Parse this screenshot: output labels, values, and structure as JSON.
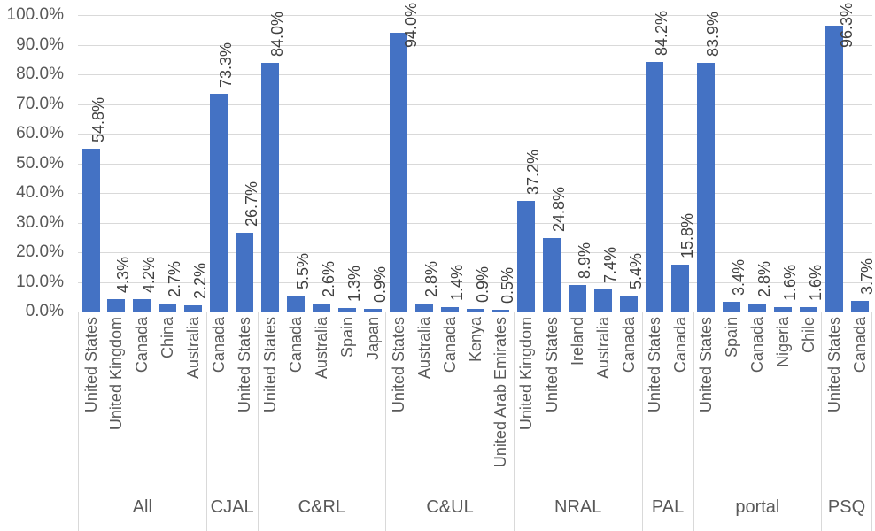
{
  "chart_data": {
    "type": "bar",
    "title": "",
    "xlabel": "",
    "ylabel": "",
    "ylim": [
      0,
      100
    ],
    "grid": true,
    "legend": false,
    "y_tick_labels": [
      "0.0%",
      "10.0%",
      "20.0%",
      "30.0%",
      "40.0%",
      "50.0%",
      "60.0%",
      "70.0%",
      "80.0%",
      "90.0%",
      "100.0%"
    ],
    "colors": {
      "bar": "#4472C4",
      "gridline": "#D9D9D9",
      "axis_line": "#D9D9D9",
      "tick_label": "#595959",
      "data_label": "#404040",
      "group_label": "#595959"
    },
    "groups": [
      {
        "label": "All",
        "bars": [
          {
            "category": "United States",
            "value": 54.8,
            "label": "54.8%"
          },
          {
            "category": "United Kingdom",
            "value": 4.3,
            "label": "4.3%"
          },
          {
            "category": "Canada",
            "value": 4.2,
            "label": "4.2%"
          },
          {
            "category": "China",
            "value": 2.7,
            "label": "2.7%"
          },
          {
            "category": "Australia",
            "value": 2.2,
            "label": "2.2%"
          }
        ]
      },
      {
        "label": "CJAL",
        "bars": [
          {
            "category": "Canada",
            "value": 73.3,
            "label": "73.3%"
          },
          {
            "category": "United States",
            "value": 26.7,
            "label": "26.7%"
          }
        ]
      },
      {
        "label": "C&RL",
        "bars": [
          {
            "category": "United States",
            "value": 84.0,
            "label": "84.0%"
          },
          {
            "category": "Canada",
            "value": 5.5,
            "label": "5.5%"
          },
          {
            "category": "Australia",
            "value": 2.6,
            "label": "2.6%"
          },
          {
            "category": "Spain",
            "value": 1.3,
            "label": "1.3%"
          },
          {
            "category": "Japan",
            "value": 0.9,
            "label": "0.9%"
          }
        ]
      },
      {
        "label": "C&UL",
        "bars": [
          {
            "category": "United States",
            "value": 94.0,
            "label": "94.0%"
          },
          {
            "category": "Australia",
            "value": 2.8,
            "label": "2.8%"
          },
          {
            "category": "Canada",
            "value": 1.4,
            "label": "1.4%"
          },
          {
            "category": "Kenya",
            "value": 0.9,
            "label": "0.9%"
          },
          {
            "category": "United Arab Emirates",
            "value": 0.5,
            "label": "0.5%"
          }
        ]
      },
      {
        "label": "NRAL",
        "bars": [
          {
            "category": "United Kingdom",
            "value": 37.2,
            "label": "37.2%"
          },
          {
            "category": "United States",
            "value": 24.8,
            "label": "24.8%"
          },
          {
            "category": "Ireland",
            "value": 8.9,
            "label": "8.9%"
          },
          {
            "category": "Australia",
            "value": 7.4,
            "label": "7.4%"
          },
          {
            "category": "Canada",
            "value": 5.4,
            "label": "5.4%"
          }
        ]
      },
      {
        "label": "PAL",
        "bars": [
          {
            "category": "United States",
            "value": 84.2,
            "label": "84.2%"
          },
          {
            "category": "Canada",
            "value": 15.8,
            "label": "15.8%"
          }
        ]
      },
      {
        "label": "portal",
        "bars": [
          {
            "category": "United States",
            "value": 83.9,
            "label": "83.9%"
          },
          {
            "category": "Spain",
            "value": 3.4,
            "label": "3.4%"
          },
          {
            "category": "Canada",
            "value": 2.8,
            "label": "2.8%"
          },
          {
            "category": "Nigeria",
            "value": 1.6,
            "label": "1.6%"
          },
          {
            "category": "Chile",
            "value": 1.6,
            "label": "1.6%"
          }
        ]
      },
      {
        "label": "PSQ",
        "bars": [
          {
            "category": "United States",
            "value": 96.3,
            "label": "96.3%"
          },
          {
            "category": "Canada",
            "value": 3.7,
            "label": "3.7%"
          }
        ]
      }
    ]
  }
}
